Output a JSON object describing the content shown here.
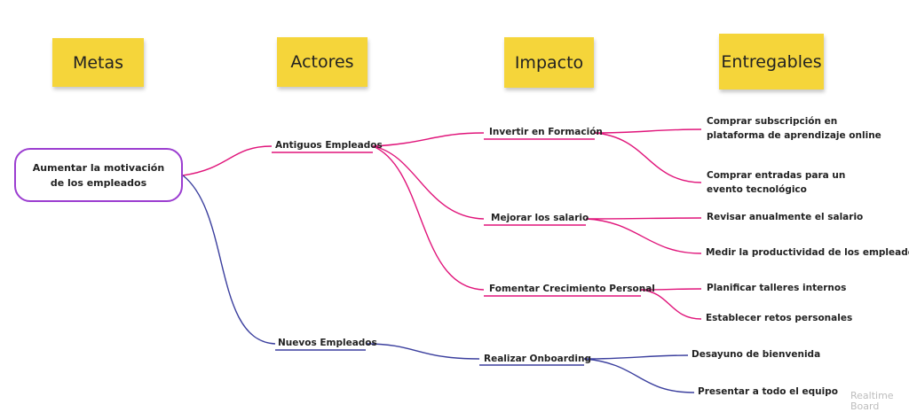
{
  "columns": [
    "Metas",
    "Actores",
    "Impacto",
    "Entregables"
  ],
  "goal": {
    "line1": "Aumentar la motivación",
    "line2": "de los empleados"
  },
  "actors": {
    "old": "Antiguos Empleados",
    "new": "Nuevos Empleados"
  },
  "impacts": {
    "training": "Invertir en Formación",
    "salary": "Mejorar los salario",
    "growth": "Fomentar Crecimiento Personal",
    "onboarding": "Realizar Onboarding"
  },
  "deliverables": {
    "subscription_line1": "Comprar subscripción en",
    "subscription_line2": "plataforma de aprendizaje online",
    "tickets_line1": "Comprar entradas para un",
    "tickets_line2": "evento tecnológico",
    "review_salary": "Revisar anualmente el salario",
    "measure": "Medir la productividad de los empleados",
    "workshops": "Planificar talleres internos",
    "challenges": "Establecer retos personales",
    "breakfast": "Desayuno de bienvenida",
    "present": "Presentar a todo el equipo"
  },
  "colors": {
    "magenta": "#e0147a",
    "blue": "#3b3f9e",
    "purple": "#9b3dd0",
    "sticky": "#f5d53a"
  },
  "watermark": {
    "line1": "Realtime",
    "line2": "Board"
  }
}
